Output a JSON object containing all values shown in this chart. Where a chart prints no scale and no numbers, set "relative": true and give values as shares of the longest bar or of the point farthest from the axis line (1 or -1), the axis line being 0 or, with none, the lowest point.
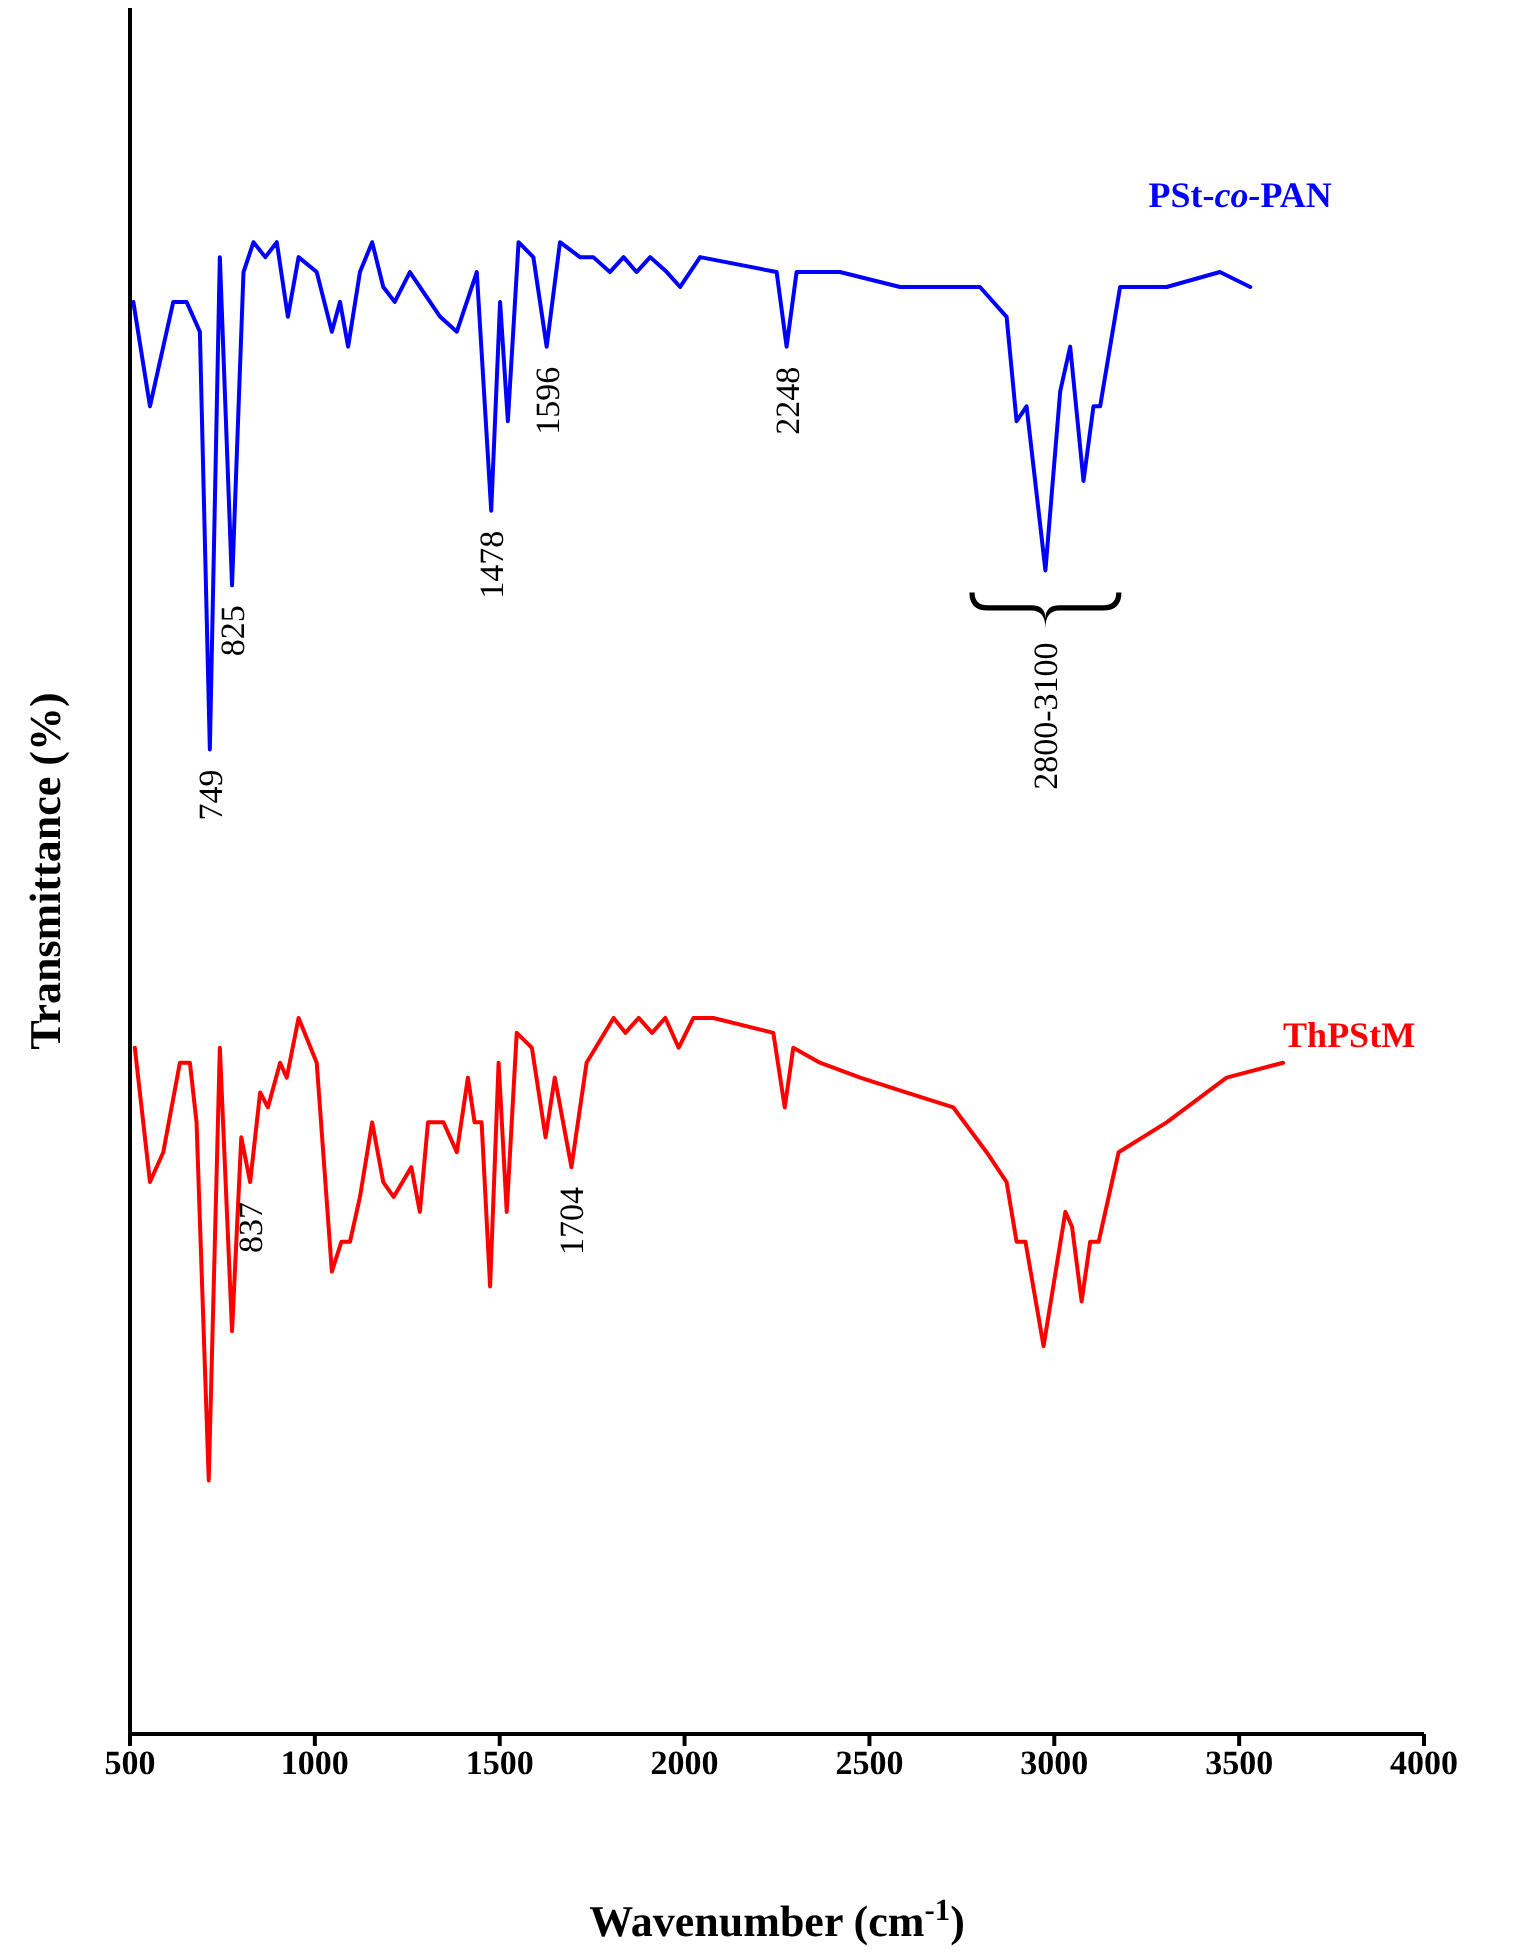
{
  "chart_data": {
    "type": "line",
    "relative": true,
    "xlabel": "Wavenumber (cm$^{-1}$)",
    "ylabel": "Transmittance (%)",
    "xlim": [
      500,
      4000
    ],
    "xticks": [
      500,
      1000,
      1500,
      2000,
      2500,
      3000,
      3500,
      4000
    ],
    "grid": false,
    "legend": false,
    "marker": "none",
    "line_style": "solid",
    "series": [
      {
        "name": "PSt-co-PAN",
        "color": "#0000ff",
        "x": [
          509,
          554,
          617,
          653,
          689,
          716,
          743,
          776,
          807,
          834,
          866,
          897,
          927,
          956,
          1005,
          1046,
          1068,
          1090,
          1122,
          1155,
          1185,
          1216,
          1257,
          1339,
          1384,
          1438,
          1477,
          1501,
          1522,
          1551,
          1591,
          1627,
          1663,
          1717,
          1753,
          1798,
          1835,
          1870,
          1907,
          1952,
          1988,
          2042,
          2249,
          2276,
          2303,
          2339,
          2420,
          2583,
          2799,
          2871,
          2898,
          2925,
          2976,
          3016,
          3043,
          3079,
          3106,
          3124,
          3178,
          3304,
          3448,
          3530
        ],
        "values": [
          0.96,
          0.89,
          0.96,
          0.96,
          0.94,
          0.66,
          0.99,
          0.77,
          0.98,
          1.0,
          0.99,
          1.0,
          0.95,
          0.99,
          0.98,
          0.94,
          0.96,
          0.93,
          0.98,
          1.0,
          0.97,
          0.96,
          0.98,
          0.95,
          0.94,
          0.98,
          0.82,
          0.96,
          0.88,
          1.0,
          0.99,
          0.93,
          1.0,
          0.99,
          0.99,
          0.98,
          0.99,
          0.98,
          0.99,
          0.98,
          0.97,
          0.99,
          0.98,
          0.93,
          0.98,
          0.98,
          0.98,
          0.97,
          0.97,
          0.95,
          0.88,
          0.89,
          0.78,
          0.9,
          0.93,
          0.84,
          0.89,
          0.89,
          0.97,
          0.97,
          0.98,
          0.97
        ]
      },
      {
        "name": "ThPStM",
        "color": "#ff0000",
        "x": [
          513,
          554,
          590,
          635,
          662,
          680,
          713,
          743,
          776,
          801,
          825,
          852,
          873,
          906,
          924,
          956,
          1005,
          1046,
          1072,
          1095,
          1122,
          1155,
          1185,
          1213,
          1261,
          1284,
          1306,
          1348,
          1384,
          1414,
          1432,
          1451,
          1474,
          1497,
          1519,
          1546,
          1587,
          1624,
          1649,
          1694,
          1735,
          1808,
          1840,
          1876,
          1912,
          1948,
          1984,
          2024,
          2078,
          2240,
          2271,
          2294,
          2366,
          2475,
          2601,
          2727,
          2817,
          2871,
          2898,
          2922,
          2971,
          3030,
          3048,
          3074,
          3097,
          3120,
          3174,
          3304,
          3466,
          3619
        ],
        "values": [
          0.46,
          0.37,
          0.39,
          0.45,
          0.45,
          0.41,
          0.17,
          0.46,
          0.27,
          0.4,
          0.37,
          0.43,
          0.42,
          0.45,
          0.44,
          0.48,
          0.45,
          0.31,
          0.33,
          0.33,
          0.36,
          0.41,
          0.37,
          0.36,
          0.38,
          0.35,
          0.41,
          0.41,
          0.39,
          0.44,
          0.41,
          0.41,
          0.3,
          0.45,
          0.35,
          0.47,
          0.46,
          0.4,
          0.44,
          0.38,
          0.45,
          0.48,
          0.47,
          0.48,
          0.47,
          0.48,
          0.46,
          0.48,
          0.48,
          0.47,
          0.42,
          0.46,
          0.45,
          0.44,
          0.43,
          0.42,
          0.39,
          0.37,
          0.33,
          0.33,
          0.26,
          0.35,
          0.34,
          0.29,
          0.33,
          0.33,
          0.39,
          0.41,
          0.44,
          0.45
        ]
      }
    ],
    "annotations": [
      {
        "text": "749",
        "x": 716,
        "y": 0.66
      },
      {
        "text": "825",
        "x": 776,
        "y": 0.77
      },
      {
        "text": "1478",
        "x": 1477,
        "y": 0.82
      },
      {
        "text": "1596",
        "x": 1627,
        "y": 0.93
      },
      {
        "text": "2248",
        "x": 2276,
        "y": 0.93
      },
      {
        "text": "2800-3100",
        "x": 2976,
        "y": 0.78
      },
      {
        "text": "837",
        "x": 825,
        "y": 0.37
      },
      {
        "text": "1704",
        "x": 1694,
        "y": 0.38
      }
    ]
  }
}
